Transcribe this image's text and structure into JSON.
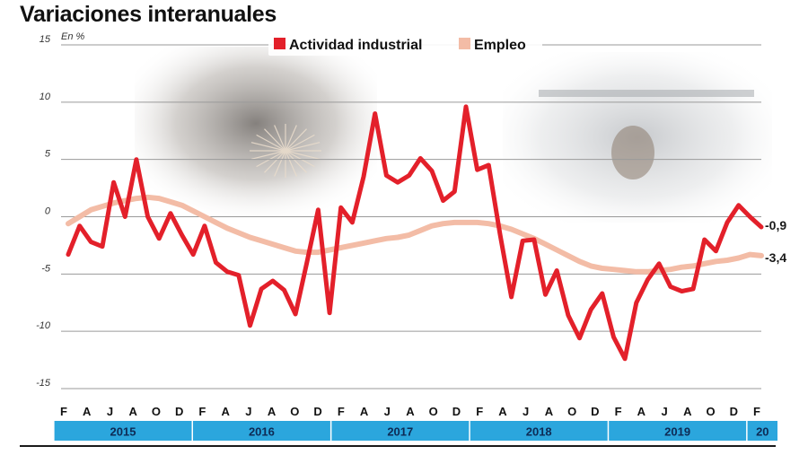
{
  "title": "Variaciones interanuales",
  "chart_data": {
    "type": "line",
    "unit_label": "En %",
    "ylim": [
      -15,
      15
    ],
    "yticks": [
      15,
      10,
      5,
      0,
      -5,
      -10,
      -15
    ],
    "ytick_labels": [
      "15",
      "10",
      "5",
      "0",
      "-5",
      "-10",
      "-15"
    ],
    "grid": true,
    "legend_position": "top-center",
    "x_month_labels": [
      "F",
      "A",
      "J",
      "A",
      "O",
      "D",
      "F",
      "A",
      "J",
      "A",
      "O",
      "D",
      "F",
      "A",
      "J",
      "A",
      "O",
      "D",
      "F",
      "A",
      "J",
      "A",
      "O",
      "D",
      "F",
      "A",
      "J",
      "A",
      "O",
      "D",
      "F"
    ],
    "x_year_labels": [
      "2015",
      "2016",
      "2017",
      "2018",
      "2019",
      "20"
    ],
    "year_colors": {
      "band": "#2ba6dd",
      "text": "#0e2b55"
    },
    "series": [
      {
        "name": "Actividad industrial",
        "color": "#e3202a",
        "end_label": "-0,9",
        "values": [
          -3.3,
          -0.8,
          -2.2,
          -2.6,
          3.0,
          0.0,
          5.0,
          0.0,
          -1.9,
          0.3,
          -1.6,
          -3.3,
          -0.8,
          -4.0,
          -4.8,
          -5.1,
          -9.5,
          -6.3,
          -5.6,
          -6.4,
          -8.5,
          -4.0,
          0.6,
          -8.4,
          0.8,
          -0.5,
          3.5,
          9.0,
          3.6,
          3.0,
          3.6,
          5.1,
          4.0,
          1.4,
          2.2,
          9.6,
          4.1,
          4.5,
          -1.5,
          -7.0,
          -2.1,
          -2.0,
          -6.8,
          -4.7,
          -8.6,
          -10.6,
          -8.1,
          -6.7,
          -10.5,
          -12.4,
          -7.5,
          -5.5,
          -4.1,
          -6.1,
          -6.5,
          -6.3,
          -2.0,
          -3.0,
          -0.5,
          1.0,
          0.0,
          -0.9
        ]
      },
      {
        "name": "Empleo",
        "color": "#f3bca6",
        "end_label": "-3,4",
        "values": [
          -0.6,
          0.0,
          0.6,
          0.9,
          1.2,
          1.4,
          1.6,
          1.7,
          1.6,
          1.3,
          1.0,
          0.5,
          0.0,
          -0.5,
          -1.0,
          -1.4,
          -1.8,
          -2.1,
          -2.4,
          -2.7,
          -3.0,
          -3.1,
          -3.1,
          -2.9,
          -2.7,
          -2.5,
          -2.3,
          -2.1,
          -1.9,
          -1.8,
          -1.6,
          -1.2,
          -0.8,
          -0.6,
          -0.5,
          -0.5,
          -0.5,
          -0.6,
          -0.8,
          -1.1,
          -1.5,
          -1.9,
          -2.4,
          -2.9,
          -3.4,
          -3.9,
          -4.3,
          -4.5,
          -4.6,
          -4.7,
          -4.8,
          -4.8,
          -4.7,
          -4.6,
          -4.4,
          -4.3,
          -4.1,
          -3.9,
          -3.8,
          -3.6,
          -3.3,
          -3.4
        ]
      }
    ]
  }
}
